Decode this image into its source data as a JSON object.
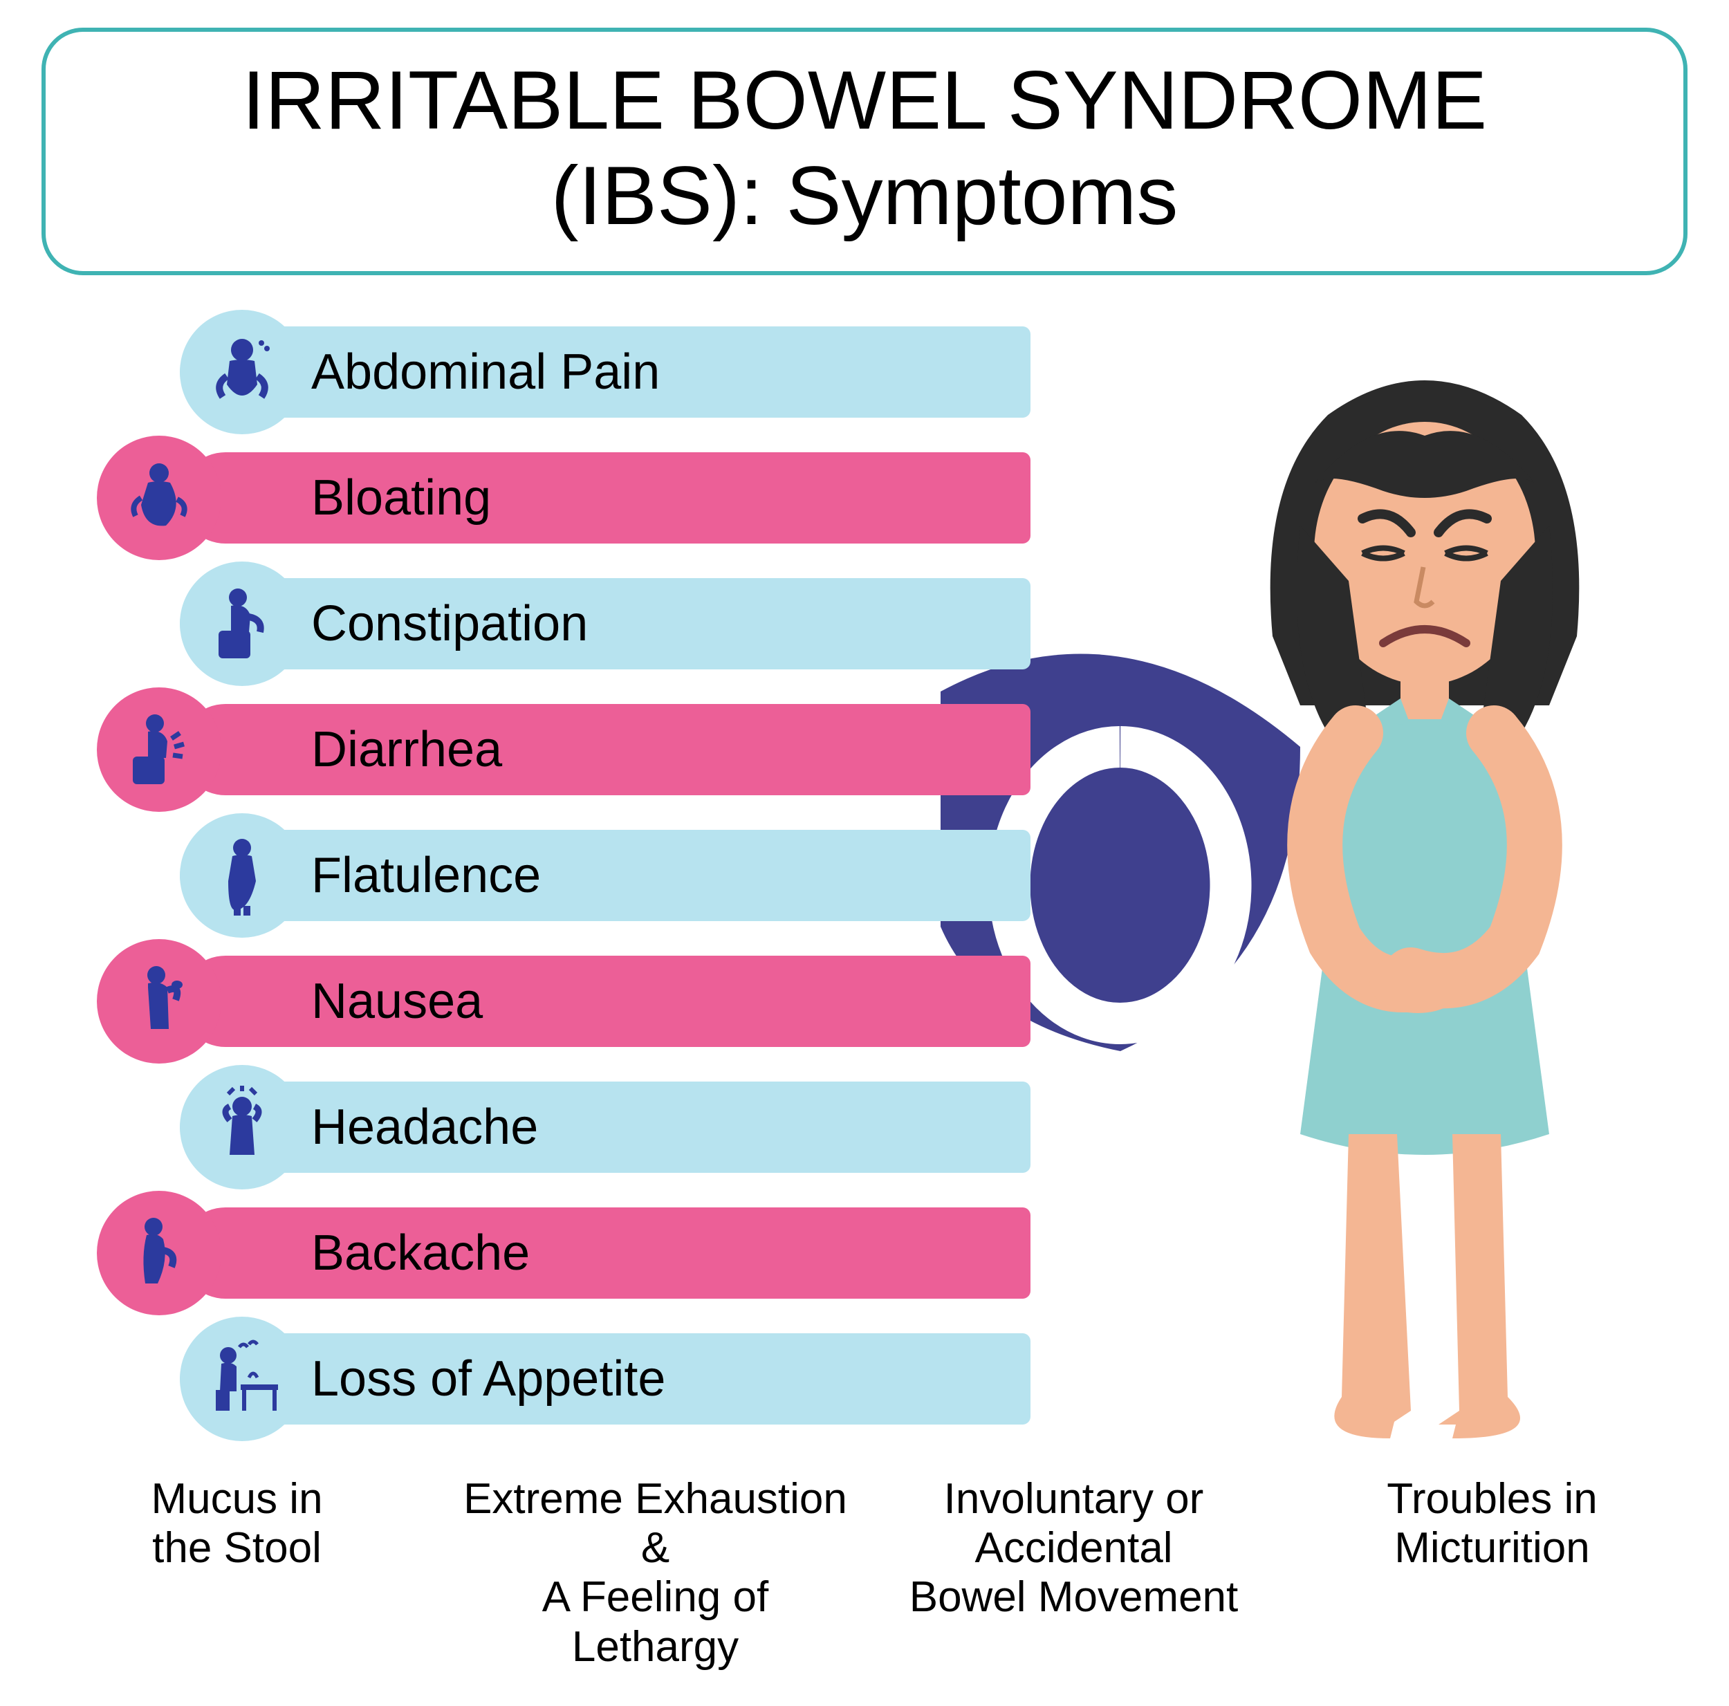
{
  "colors": {
    "title_border": "#3fb3b3",
    "blue_bg": "#b7e3ef",
    "pink_bg": "#ec5f97",
    "icon_dark": "#2c3a9e",
    "navy_shape": "#2a2b82",
    "skin": "#f4b693",
    "hair": "#2b2b2b",
    "dress": "#8fd0cf"
  },
  "title": {
    "line1": "IRRITABLE BOWEL SYNDROME",
    "line2": "(IBS): Symptoms"
  },
  "symptoms": [
    {
      "label": "Abdominal Pain",
      "bar_color": "blue_bg",
      "circle_color": "blue_bg",
      "circle_offset": "a",
      "icon": "abdominal"
    },
    {
      "label": "Bloating",
      "bar_color": "pink_bg",
      "circle_color": "pink_bg",
      "circle_offset": "b",
      "icon": "bloating"
    },
    {
      "label": "Constipation",
      "bar_color": "blue_bg",
      "circle_color": "blue_bg",
      "circle_offset": "a",
      "icon": "constipation"
    },
    {
      "label": "Diarrhea",
      "bar_color": "pink_bg",
      "circle_color": "pink_bg",
      "circle_offset": "b",
      "icon": "diarrhea"
    },
    {
      "label": "Flatulence",
      "bar_color": "blue_bg",
      "circle_color": "blue_bg",
      "circle_offset": "a",
      "icon": "flatulence"
    },
    {
      "label": "Nausea",
      "bar_color": "pink_bg",
      "circle_color": "pink_bg",
      "circle_offset": "b",
      "icon": "nausea"
    },
    {
      "label": "Headache",
      "bar_color": "blue_bg",
      "circle_color": "blue_bg",
      "circle_offset": "a",
      "icon": "headache"
    },
    {
      "label": "Backache",
      "bar_color": "pink_bg",
      "circle_color": "pink_bg",
      "circle_offset": "b",
      "icon": "backache"
    },
    {
      "label": "Loss of Appetite",
      "bar_color": "blue_bg",
      "circle_color": "blue_bg",
      "circle_offset": "a",
      "icon": "appetite"
    }
  ],
  "footer": [
    "Mucus in\nthe Stool",
    "Extreme Exhaustion &\nA Feeling of Lethargy",
    "Involuntary or Accidental\nBowel Movement",
    "Troubles in\nMicturition"
  ]
}
